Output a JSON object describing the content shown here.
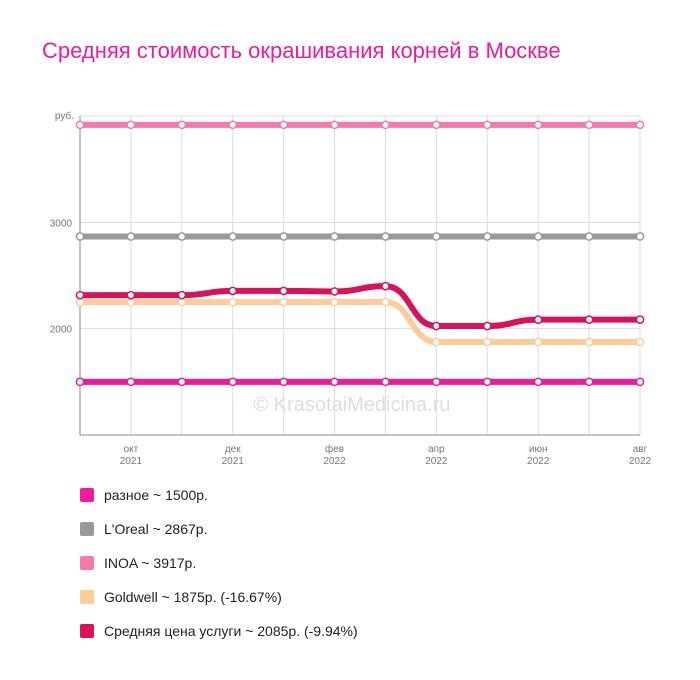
{
  "chart_data": {
    "type": "line",
    "title": "Средняя стоимость окрашивания корней в Москве",
    "unit_label": "руб.",
    "y_ticks": [
      {
        "value": 3000,
        "label": "3000"
      },
      {
        "value": 2000,
        "label": "2000"
      }
    ],
    "ylim": [
      1000,
      4000
    ],
    "x": [
      0,
      1,
      2,
      3,
      4,
      5,
      6,
      7,
      8,
      9,
      10,
      11
    ],
    "x_ticks": [
      {
        "x": 1,
        "month": "окт",
        "year": "2021"
      },
      {
        "x": 3,
        "month": "дек",
        "year": "2021"
      },
      {
        "x": 5,
        "month": "фев",
        "year": "2022"
      },
      {
        "x": 7,
        "month": "апр",
        "year": "2022"
      },
      {
        "x": 9,
        "month": "июн",
        "year": "2022"
      },
      {
        "x": 11,
        "month": "авг",
        "year": "2022"
      }
    ],
    "grid": true,
    "watermark": "© KrasotaiMedicina.ru",
    "legend_position": "bottom",
    "series": [
      {
        "name": "разное",
        "legend": "разное ~ 1500р.",
        "color": "#ee1aa0",
        "width": 6,
        "values": [
          1500,
          1500,
          1500,
          1500,
          1500,
          1500,
          1500,
          1500,
          1500,
          1500,
          1500,
          1500
        ]
      },
      {
        "name": "L'Oreal",
        "legend": "L'Oreal ~ 2867р.",
        "color": "#999999",
        "width": 6,
        "values": [
          2867,
          2867,
          2867,
          2867,
          2867,
          2867,
          2867,
          2867,
          2867,
          2867,
          2867,
          2867
        ]
      },
      {
        "name": "INOA",
        "legend": "INOA ~ 3917р.",
        "color": "#f57aab",
        "width": 6,
        "values": [
          3917,
          3917,
          3917,
          3917,
          3917,
          3917,
          3917,
          3917,
          3917,
          3917,
          3917,
          3917
        ]
      },
      {
        "name": "Goldwell",
        "legend": "Goldwell ~ 1875р. (-16.67%)",
        "color": "#ffcc99",
        "width": 6,
        "values": [
          2250,
          2250,
          2250,
          2250,
          2250,
          2250,
          2250,
          1875,
          1875,
          1875,
          1875,
          1875
        ]
      },
      {
        "name": "Средняя цена услуги",
        "legend": "Средняя цена услуги ~ 2085р. (-9.94%)",
        "color": "#d9125c",
        "width": 6,
        "values": [
          2315,
          2315,
          2315,
          2355,
          2355,
          2350,
          2400,
          2025,
          2025,
          2085,
          2085,
          2085
        ]
      }
    ]
  }
}
